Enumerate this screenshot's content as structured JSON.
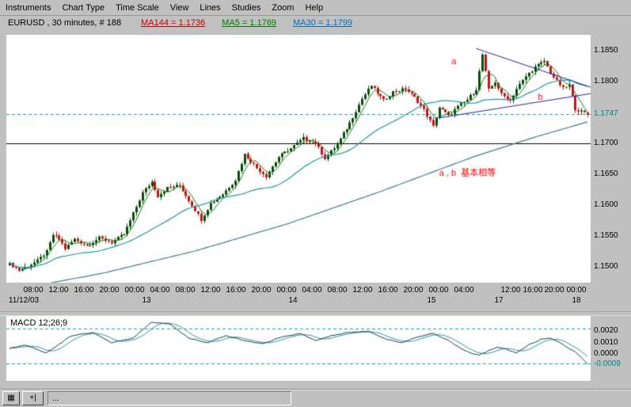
{
  "menu": {
    "items": [
      "Instruments",
      "Chart Type",
      "Time Scale",
      "View",
      "Lines",
      "Studies",
      "Zoom",
      "Help"
    ]
  },
  "info": {
    "symbol": "EURUSD , 30 minutes, # 188",
    "ma_labels": [
      {
        "text": "MA144 = 1.1736",
        "color": "#cc0000"
      },
      {
        "text": "MA5 = 1.1769",
        "color": "#007a00"
      },
      {
        "text": "MA30 = 1.1799",
        "color": "#0072bc"
      }
    ]
  },
  "colors": {
    "window_bg": "#c0c0c0",
    "panel_bg": "#ffffff",
    "up_candle": "#0a4d0a",
    "down_candle": "#c41414",
    "ma144": "#3d7f86",
    "ma30": "#1d95a5",
    "ma5": "#0a7a0a",
    "trend_line": "#2222aa",
    "dashed_level": "#00a0a8",
    "annotation": "#ff0000",
    "current_price_label": "#008080",
    "macd_line": "#123c3c",
    "macd_signal": "#1d95a5"
  },
  "chart_data": {
    "type": "candlestick",
    "instrument": "EURUSD",
    "interval": "30 minutes",
    "candle_count": 188,
    "y_axis": {
      "range": [
        1.148,
        1.187
      ],
      "labels": [
        {
          "text": "1.1850",
          "v": 1.185
        },
        {
          "text": "1.1800",
          "v": 1.18
        },
        {
          "text": "1.1747",
          "v": 1.1747,
          "accent": true
        },
        {
          "text": "1.1700",
          "v": 1.17
        },
        {
          "text": "1.1650",
          "v": 1.165
        },
        {
          "text": "1.1600",
          "v": 1.16
        },
        {
          "text": "1.1550",
          "v": 1.155
        },
        {
          "text": "1.1500",
          "v": 1.15
        }
      ]
    },
    "x_axis": {
      "time_ticks": [
        {
          "f": 0.0436,
          "label": "08:00"
        },
        {
          "f": 0.0872,
          "label": "12:00"
        },
        {
          "f": 0.1308,
          "label": "16:00"
        },
        {
          "f": 0.1744,
          "label": "20:00"
        },
        {
          "f": 0.218,
          "label": "00:00"
        },
        {
          "f": 0.2616,
          "label": "04:00"
        },
        {
          "f": 0.3052,
          "label": "08:00"
        },
        {
          "f": 0.3488,
          "label": "12:00"
        },
        {
          "f": 0.3924,
          "label": "16:00"
        },
        {
          "f": 0.436,
          "label": "20:00"
        },
        {
          "f": 0.4796,
          "label": "00:00"
        },
        {
          "f": 0.5232,
          "label": "04:00"
        },
        {
          "f": 0.5668,
          "label": "08:00"
        },
        {
          "f": 0.6104,
          "label": "12:00"
        },
        {
          "f": 0.654,
          "label": "16:00"
        },
        {
          "f": 0.6975,
          "label": "20:00"
        },
        {
          "f": 0.7411,
          "label": "00:00"
        },
        {
          "f": 0.7847,
          "label": "04:00"
        },
        {
          "f": 0.8651,
          "label": "12:00"
        },
        {
          "f": 0.9033,
          "label": "16:00"
        },
        {
          "f": 0.9401,
          "label": "20:00"
        },
        {
          "f": 0.9782,
          "label": "00:00"
        }
      ],
      "date_ticks": [
        {
          "f": 0.027,
          "label": "11/12/03"
        },
        {
          "f": 0.238,
          "label": "13"
        },
        {
          "f": 0.49,
          "label": "14"
        },
        {
          "f": 0.729,
          "label": "15"
        },
        {
          "f": 0.845,
          "label": "17"
        },
        {
          "f": 0.978,
          "label": "18"
        }
      ]
    },
    "price_path": [
      [
        0,
        1.1505
      ],
      [
        3,
        1.1495
      ],
      [
        6,
        1.1502
      ],
      [
        9,
        1.151
      ],
      [
        12,
        1.1525
      ],
      [
        14,
        1.1552
      ],
      [
        16,
        1.1545
      ],
      [
        18,
        1.153
      ],
      [
        21,
        1.1545
      ],
      [
        25,
        1.1535
      ],
      [
        29,
        1.1547
      ],
      [
        33,
        1.154
      ],
      [
        37,
        1.1553
      ],
      [
        39,
        1.1575
      ],
      [
        43,
        1.162
      ],
      [
        46,
        1.1638
      ],
      [
        48,
        1.1615
      ],
      [
        51,
        1.1628
      ],
      [
        55,
        1.1632
      ],
      [
        59,
        1.16
      ],
      [
        62,
        1.1577
      ],
      [
        65,
        1.1603
      ],
      [
        69,
        1.1618
      ],
      [
        73,
        1.1641
      ],
      [
        76,
        1.1682
      ],
      [
        80,
        1.166
      ],
      [
        83,
        1.1647
      ],
      [
        87,
        1.1678
      ],
      [
        91,
        1.1692
      ],
      [
        95,
        1.1708
      ],
      [
        99,
        1.17
      ],
      [
        102,
        1.1676
      ],
      [
        106,
        1.1698
      ],
      [
        110,
        1.1733
      ],
      [
        114,
        1.1772
      ],
      [
        117,
        1.1793
      ],
      [
        121,
        1.1769
      ],
      [
        124,
        1.1783
      ],
      [
        128,
        1.1788
      ],
      [
        131,
        1.1774
      ],
      [
        134,
        1.1754
      ],
      [
        137,
        1.1727
      ],
      [
        139,
        1.1758
      ],
      [
        142,
        1.1744
      ],
      [
        145,
        1.1759
      ],
      [
        148,
        1.177
      ],
      [
        151,
        1.1788
      ],
      [
        153,
        1.1843
      ],
      [
        155,
        1.1786
      ],
      [
        157,
        1.1799
      ],
      [
        159,
        1.1779
      ],
      [
        162,
        1.1769
      ],
      [
        164,
        1.1788
      ],
      [
        167,
        1.1808
      ],
      [
        170,
        1.1823
      ],
      [
        173,
        1.1833
      ],
      [
        175,
        1.1814
      ],
      [
        177,
        1.18
      ],
      [
        179,
        1.1789
      ],
      [
        181,
        1.1794
      ],
      [
        183,
        1.1756
      ],
      [
        185,
        1.1751
      ],
      [
        187,
        1.1747
      ]
    ],
    "ma144_path": [
      [
        0,
        1.1462
      ],
      [
        30,
        1.149
      ],
      [
        60,
        1.1526
      ],
      [
        90,
        1.157
      ],
      [
        120,
        1.1622
      ],
      [
        150,
        1.1678
      ],
      [
        170,
        1.171
      ],
      [
        188,
        1.1736
      ]
    ],
    "levels": {
      "current_price": 1.1747,
      "support_line": 1.17
    },
    "trend_lines": [
      {
        "i1": 151,
        "p1": 1.1853,
        "i2": 189,
        "p2": 1.1789
      },
      {
        "i1": 139,
        "p1": 1.1741,
        "i2": 189,
        "p2": 1.1781
      }
    ],
    "annotations": [
      {
        "text": "a",
        "i": 143,
        "p": 1.1828
      },
      {
        "text": "b",
        "i": 171,
        "p": 1.177
      },
      {
        "text": "a , b  基本相等",
        "i": 139,
        "p": 1.1648
      }
    ],
    "macd": {
      "label": "MACD 12;26;9",
      "y_labels": [
        {
          "text": "0.0020",
          "v": 0.002
        },
        {
          "text": "0.0010",
          "v": 0.001
        },
        {
          "text": "0.0000",
          "v": 0.0
        },
        {
          "text": "-0.0009",
          "v": -0.0009,
          "accent": true
        }
      ],
      "dashed_levels": [
        0.0022,
        -0.0008
      ],
      "anchors": [
        [
          0,
          0.0005
        ],
        [
          5,
          0.0008
        ],
        [
          12,
          0.0001
        ],
        [
          20,
          0.0016
        ],
        [
          27,
          0.0019
        ],
        [
          33,
          0.001
        ],
        [
          40,
          0.0014
        ],
        [
          46,
          0.0028
        ],
        [
          52,
          0.0026
        ],
        [
          58,
          0.0014
        ],
        [
          64,
          0.001
        ],
        [
          70,
          0.0016
        ],
        [
          76,
          0.0012
        ],
        [
          82,
          0.0009
        ],
        [
          88,
          0.0015
        ],
        [
          94,
          0.0018
        ],
        [
          99,
          0.0012
        ],
        [
          104,
          0.0016
        ],
        [
          110,
          0.0019
        ],
        [
          116,
          0.002
        ],
        [
          122,
          0.0013
        ],
        [
          127,
          0.001
        ],
        [
          132,
          0.0015
        ],
        [
          137,
          0.0018
        ],
        [
          142,
          0.0012
        ],
        [
          146,
          0.0005
        ],
        [
          149,
          0.0001
        ],
        [
          152,
          -0.0001
        ],
        [
          155,
          0.0003
        ],
        [
          158,
          0.0006
        ],
        [
          161,
          0.0004
        ],
        [
          164,
          0.0001
        ],
        [
          168,
          0.0008
        ],
        [
          172,
          0.0013
        ],
        [
          175,
          0.0014
        ],
        [
          178,
          0.001
        ],
        [
          181,
          0.0005
        ],
        [
          183,
          0.0002
        ],
        [
          185,
          -0.0003
        ],
        [
          187,
          -0.0009
        ]
      ]
    }
  },
  "statusbar": {
    "buttons": [
      {
        "glyph": "▦"
      },
      {
        "glyph": "+|"
      }
    ],
    "field_text": "..."
  }
}
